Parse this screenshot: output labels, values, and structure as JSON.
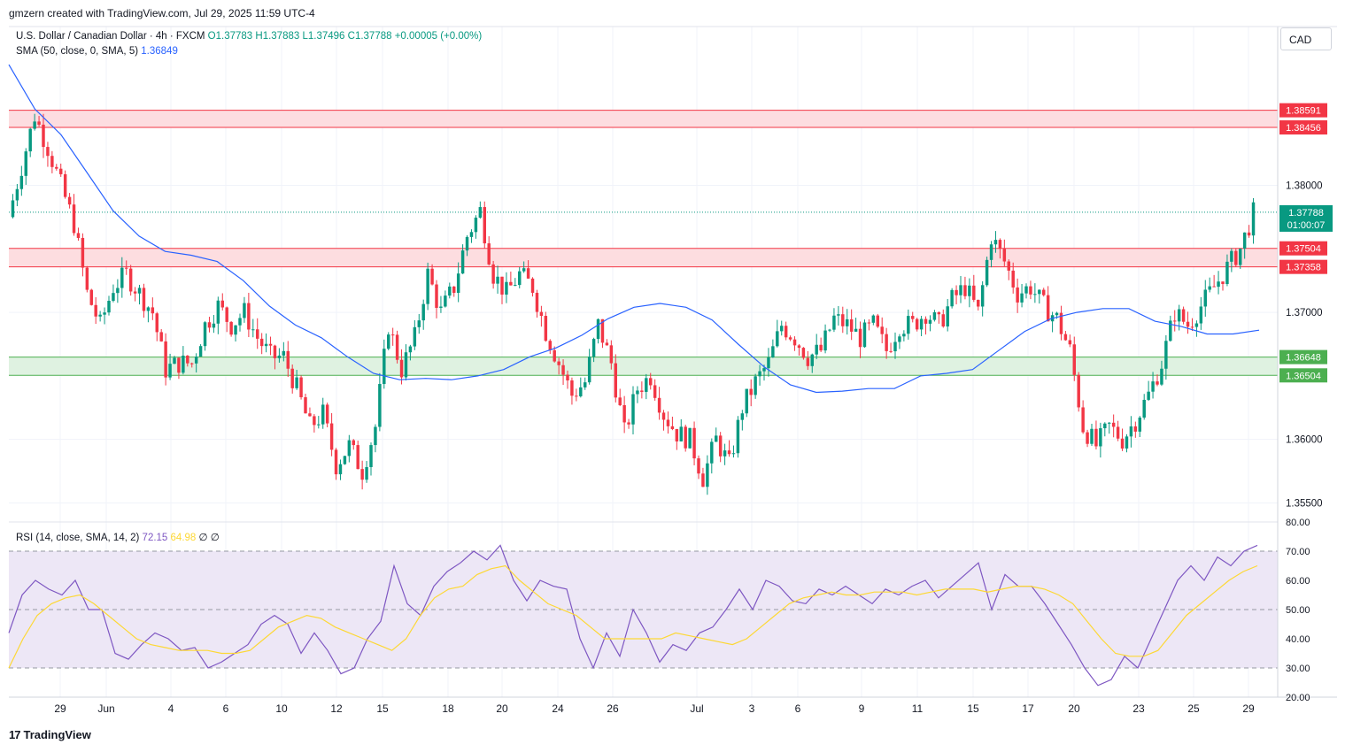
{
  "header": "gmzern created with TradingView.com, Jul 29, 2025 11:59 UTC-4",
  "legend": {
    "symbol": "U.S. Dollar / Canadian Dollar · 4h · FXCM",
    "open": "O1.37783",
    "high": "H1.37883",
    "low": "L1.37496",
    "close": "C1.37788",
    "change": "+0.00005 (+0.00%)",
    "sma_label": "SMA (50, close, 0, SMA, 5)",
    "sma_value": "1.36849",
    "rsi_label": "RSI (14, close, SMA, 14, 2)",
    "rsi_value": "72.15",
    "rsi_ma_value": "64.98",
    "rsi_extra": "∅ ∅"
  },
  "currency_button": "CAD",
  "footer": {
    "logo_glyph": "17",
    "brand": "TradingView"
  },
  "colors": {
    "up": "#089981",
    "down": "#f23645",
    "sma": "#2962ff",
    "rsi": "#7e57c2",
    "rsi_ma": "#fdd835",
    "resistance_fill": "#fddde0",
    "resistance_line": "#f23645",
    "support_fill": "#dff2e1",
    "support_line": "#4caf50",
    "rsi_band": "#ede7f6"
  },
  "chart_data": [
    {
      "type": "candlestick",
      "title": "U.S. Dollar / Canadian Dollar · 4h · FXCM",
      "ylim": [
        1.3535,
        1.3925
      ],
      "y_ticks": [
        "1.38000",
        "1.37000",
        "1.36000",
        "1.35500"
      ],
      "x_ticks": [
        "29",
        "Jun",
        "4",
        "6",
        "10",
        "12",
        "15",
        "18",
        "20",
        "24",
        "26",
        "Jul",
        "3",
        "6",
        "9",
        "11",
        "15",
        "17",
        "20",
        "23",
        "25",
        "29"
      ],
      "price_path": [
        1.3775,
        1.3815,
        1.3855,
        1.383,
        1.38,
        1.377,
        1.3715,
        1.369,
        1.372,
        1.373,
        1.3715,
        1.37,
        1.3655,
        1.366,
        1.366,
        1.369,
        1.3705,
        1.369,
        1.37,
        1.368,
        1.3665,
        1.3665,
        1.364,
        1.361,
        1.362,
        1.358,
        1.3595,
        1.3575,
        1.361,
        1.369,
        1.3655,
        1.368,
        1.373,
        1.37,
        1.372,
        1.376,
        1.378,
        1.373,
        1.3715,
        1.373,
        1.372,
        1.3685,
        1.366,
        1.3635,
        1.3645,
        1.369,
        1.366,
        1.3605,
        1.364,
        1.365,
        1.362,
        1.3605,
        1.36,
        1.357,
        1.36,
        1.358,
        1.3625,
        1.3645,
        1.366,
        1.369,
        1.368,
        1.3665,
        1.367,
        1.3695,
        1.369,
        1.368,
        1.369,
        1.367,
        1.369,
        1.369,
        1.37,
        1.369,
        1.371,
        1.372,
        1.37,
        1.376,
        1.374,
        1.3715,
        1.372,
        1.3705,
        1.3695,
        1.367,
        1.361,
        1.3595,
        1.361,
        1.36,
        1.3615,
        1.3635,
        1.366,
        1.37,
        1.369,
        1.3705,
        1.372,
        1.3735,
        1.375,
        1.3778
      ],
      "sma_value": 1.36849,
      "last_price": "1.37788",
      "countdown": "01:00:07",
      "sma_path": [
        1.3895,
        1.386,
        1.384,
        1.381,
        1.378,
        1.376,
        1.3748,
        1.3745,
        1.374,
        1.3725,
        1.3705,
        1.369,
        1.368,
        1.3665,
        1.3652,
        1.3647,
        1.3648,
        1.3647,
        1.365,
        1.3655,
        1.3665,
        1.3672,
        1.3682,
        1.3695,
        1.3704,
        1.3707,
        1.3704,
        1.3694,
        1.3675,
        1.3657,
        1.3643,
        1.3637,
        1.3638,
        1.364,
        1.364,
        1.365,
        1.3652,
        1.3655,
        1.367,
        1.3685,
        1.3695,
        1.37,
        1.3703,
        1.3703,
        1.3693,
        1.3689,
        1.3683,
        1.3683,
        1.3686
      ],
      "zones": [
        {
          "type": "resistance",
          "upper": "1.38591",
          "lower": "1.38456"
        },
        {
          "type": "resistance",
          "upper": "1.37504",
          "lower": "1.37358"
        },
        {
          "type": "support",
          "upper": "1.36648",
          "lower": "1.36504"
        }
      ]
    },
    {
      "type": "line",
      "title": "RSI (14, close, SMA, 14, 2)",
      "ylim": [
        20,
        80
      ],
      "y_ticks": [
        "80.00",
        "70.00",
        "60.00",
        "50.00",
        "40.00",
        "30.00",
        "20.00"
      ],
      "band": [
        30,
        70
      ],
      "midline": 50,
      "series": [
        {
          "name": "RSI",
          "values": [
            42,
            55,
            60,
            57,
            55,
            60,
            50,
            50,
            35,
            33,
            38,
            42,
            40,
            36,
            37,
            30,
            32,
            35,
            38,
            45,
            48,
            45,
            35,
            42,
            36,
            28,
            30,
            40,
            46,
            65,
            52,
            48,
            58,
            63,
            66,
            70,
            67,
            72,
            60,
            53,
            60,
            58,
            57,
            40,
            30,
            42,
            34,
            50,
            42,
            32,
            38,
            36,
            42,
            44,
            50,
            57,
            50,
            60,
            58,
            53,
            52,
            57,
            55,
            58,
            55,
            52,
            57,
            55,
            58,
            60,
            54,
            58,
            62,
            66,
            50,
            62,
            58,
            58,
            52,
            45,
            38,
            30,
            24,
            26,
            34,
            30,
            40,
            50,
            60,
            65,
            60,
            68,
            65,
            70,
            72
          ]
        },
        {
          "name": "RSI MA",
          "values": [
            30,
            40,
            48,
            52,
            54,
            55,
            52,
            48,
            44,
            40,
            38,
            37,
            36,
            36,
            36,
            35,
            35,
            36,
            40,
            44,
            46,
            48,
            47,
            44,
            42,
            40,
            38,
            36,
            40,
            48,
            54,
            57,
            58,
            62,
            64,
            65,
            60,
            56,
            52,
            50,
            48,
            44,
            40,
            40,
            40,
            40,
            40,
            42,
            41,
            40,
            39,
            38,
            40,
            44,
            48,
            52,
            54,
            55,
            56,
            55,
            55,
            56,
            56,
            56,
            55,
            56,
            57,
            57,
            57,
            56,
            57,
            58,
            58,
            57,
            55,
            52,
            46,
            40,
            35,
            34,
            34,
            36,
            42,
            48,
            52,
            56,
            60,
            63,
            65
          ]
        }
      ]
    }
  ]
}
